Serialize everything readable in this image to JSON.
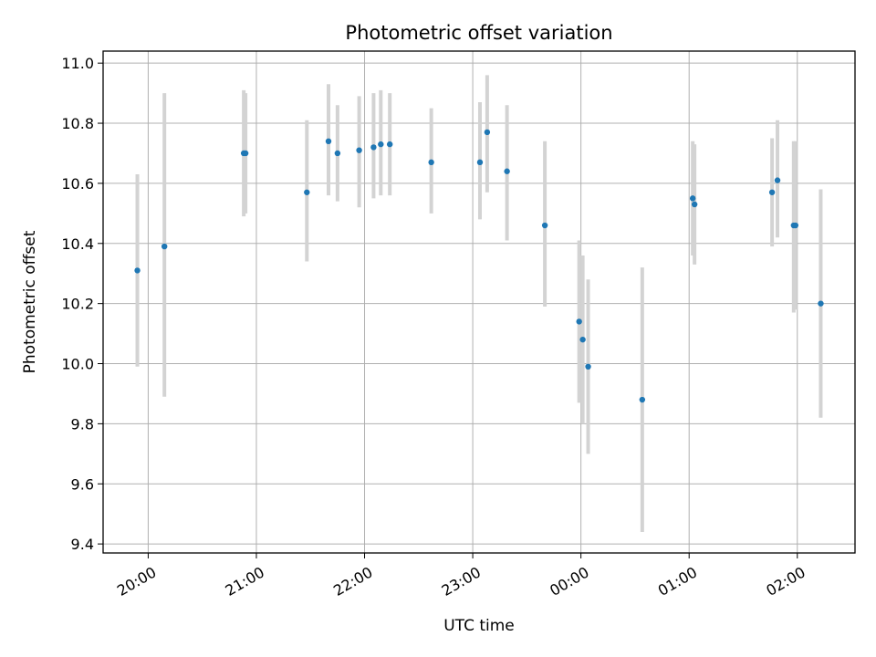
{
  "chart_data": {
    "type": "scatter",
    "title": "Photometric offset variation",
    "xlabel": "UTC time",
    "ylabel": "Photometric offset",
    "x_axis_type": "time",
    "xlim": [
      "19:35",
      "02:32"
    ],
    "ylim": [
      9.37,
      11.04
    ],
    "grid": true,
    "x_ticks": [
      "20:00",
      "21:00",
      "22:00",
      "23:00",
      "00:00",
      "01:00",
      "02:00"
    ],
    "y_ticks": [
      "9.4",
      "9.6",
      "9.8",
      "10.0",
      "10.2",
      "10.4",
      "10.6",
      "10.8",
      "11.0"
    ],
    "marker_color": "#1f77b4",
    "errorbar_color": "#d3d3d3",
    "points": [
      {
        "x": "19:54",
        "y": 10.31,
        "ylow": 9.99,
        "yhigh": 10.63
      },
      {
        "x": "20:09",
        "y": 10.39,
        "ylow": 9.89,
        "yhigh": 10.9
      },
      {
        "x": "20:53",
        "y": 10.7,
        "ylow": 10.49,
        "yhigh": 10.91
      },
      {
        "x": "20:54",
        "y": 10.7,
        "ylow": 10.5,
        "yhigh": 10.9
      },
      {
        "x": "21:28",
        "y": 10.57,
        "ylow": 10.34,
        "yhigh": 10.81
      },
      {
        "x": "21:40",
        "y": 10.74,
        "ylow": 10.56,
        "yhigh": 10.93
      },
      {
        "x": "21:45",
        "y": 10.7,
        "ylow": 10.54,
        "yhigh": 10.86
      },
      {
        "x": "21:57",
        "y": 10.71,
        "ylow": 10.52,
        "yhigh": 10.89
      },
      {
        "x": "22:05",
        "y": 10.72,
        "ylow": 10.55,
        "yhigh": 10.9
      },
      {
        "x": "22:09",
        "y": 10.73,
        "ylow": 10.56,
        "yhigh": 10.91
      },
      {
        "x": "22:14",
        "y": 10.73,
        "ylow": 10.56,
        "yhigh": 10.9
      },
      {
        "x": "22:37",
        "y": 10.67,
        "ylow": 10.5,
        "yhigh": 10.85
      },
      {
        "x": "23:04",
        "y": 10.67,
        "ylow": 10.48,
        "yhigh": 10.87
      },
      {
        "x": "23:08",
        "y": 10.77,
        "ylow": 10.57,
        "yhigh": 10.96
      },
      {
        "x": "23:19",
        "y": 10.64,
        "ylow": 10.41,
        "yhigh": 10.86
      },
      {
        "x": "23:40",
        "y": 10.46,
        "ylow": 10.19,
        "yhigh": 10.74
      },
      {
        "x": "23:59",
        "y": 10.14,
        "ylow": 9.87,
        "yhigh": 10.41
      },
      {
        "x": "00:01",
        "y": 10.08,
        "ylow": 9.8,
        "yhigh": 10.36
      },
      {
        "x": "00:04",
        "y": 9.99,
        "ylow": 9.7,
        "yhigh": 10.28
      },
      {
        "x": "00:34",
        "y": 9.88,
        "ylow": 9.44,
        "yhigh": 10.32
      },
      {
        "x": "01:02",
        "y": 10.55,
        "ylow": 10.36,
        "yhigh": 10.74
      },
      {
        "x": "01:03",
        "y": 10.53,
        "ylow": 10.33,
        "yhigh": 10.73
      },
      {
        "x": "01:46",
        "y": 10.57,
        "ylow": 10.39,
        "yhigh": 10.75
      },
      {
        "x": "01:49",
        "y": 10.61,
        "ylow": 10.42,
        "yhigh": 10.81
      },
      {
        "x": "01:58",
        "y": 10.46,
        "ylow": 10.17,
        "yhigh": 10.74
      },
      {
        "x": "01:59",
        "y": 10.46,
        "ylow": 10.18,
        "yhigh": 10.74
      },
      {
        "x": "02:13",
        "y": 10.2,
        "ylow": 9.82,
        "yhigh": 10.58
      }
    ]
  }
}
